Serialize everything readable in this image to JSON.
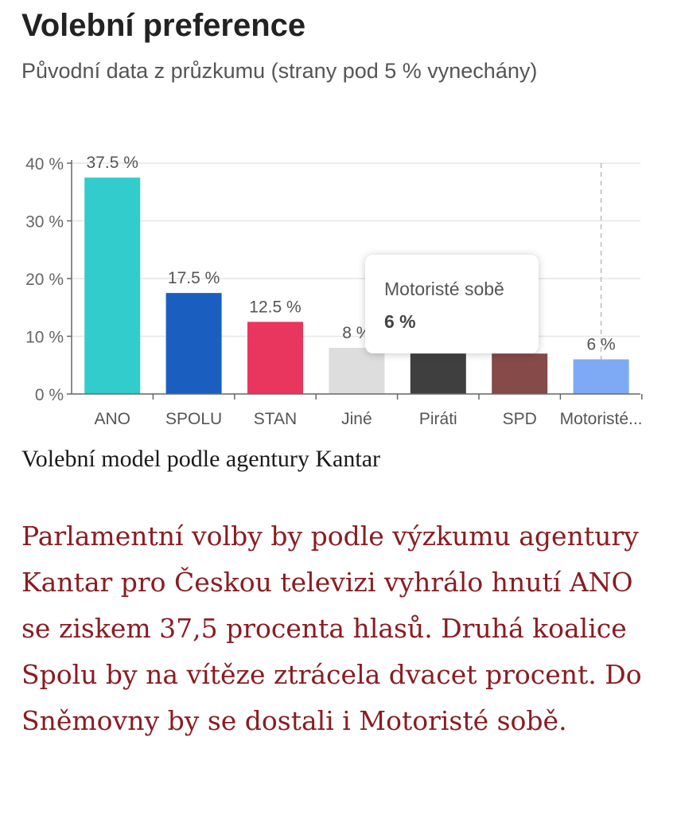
{
  "header": {
    "title": "Volební preference",
    "subtitle": "Původní data z průzkumu (strany pod 5 % vynechány)"
  },
  "chart_data": {
    "type": "bar",
    "categories": [
      "ANO",
      "SPOLU",
      "STAN",
      "Jiné",
      "Piráti",
      "SPD",
      "Motoristé..."
    ],
    "values": [
      37.5,
      17.5,
      12.5,
      8,
      7,
      7,
      6
    ],
    "data_labels": [
      "37.5 %",
      "17.5 %",
      "12.5 %",
      "8 %",
      "",
      "",
      "6 %"
    ],
    "colors": [
      "#33cccc",
      "#1a5fbf",
      "#e8365f",
      "#dddddd",
      "#3f3f3f",
      "#864a48",
      "#7ea9f5"
    ],
    "y_ticks": [
      "0 %",
      "10 %",
      "20 %",
      "30 %",
      "40 %"
    ],
    "y_tick_values": [
      0,
      10,
      20,
      30,
      40
    ],
    "ylim": [
      0,
      40
    ],
    "grid": true,
    "hover_index": 6
  },
  "tooltip": {
    "name": "Motoristé sobě",
    "value": "6 %"
  },
  "caption": "Volební model podle agentury Kantar",
  "article": "Parlamentní volby by podle výzkumu agentury Kantar pro Českou televizi vyhrálo hnutí ANO se ziskem 37,5 procenta hlasů. Druhá koalice Spolu by na vítěze ztrácela dvacet procent. Do Sněmovny by se dostali i Motoristé sobě."
}
